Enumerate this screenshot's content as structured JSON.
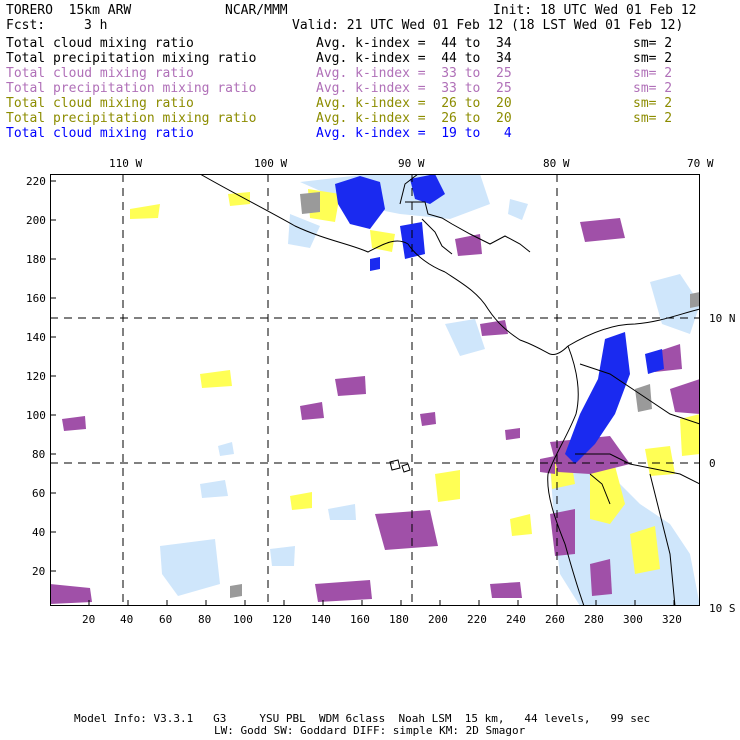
{
  "header": {
    "model": "TORERO  15km ARW",
    "org": "NCAR/MMM",
    "init": "Init: 18 UTC Wed 01 Feb 12",
    "fcst_label": "Fcst:",
    "fcst_value": "3 h",
    "valid": "Valid: 21 UTC Wed 01 Feb 12 (18 LST Wed 01 Feb 12)"
  },
  "colors": {
    "black": "#000000",
    "purple": "#a050a8",
    "olive": "#8c8c00",
    "blue": "#0000ff",
    "yellow": "#ffff55",
    "lightblue": "#cfe6fb",
    "gray": "#9a9a9a",
    "blueshade": "#1a2af0"
  },
  "legend": [
    {
      "field": "Total cloud mixing ratio",
      "kindex": "Avg. k-index =  44 to  34",
      "sm": "sm= 2",
      "color": "#000000"
    },
    {
      "field": "Total precipitation mixing ratio",
      "kindex": "Avg. k-index =  44 to  34",
      "sm": "sm= 2",
      "color": "#000000"
    },
    {
      "field": "Total cloud mixing ratio",
      "kindex": "Avg. k-index =  33 to  25",
      "sm": "sm= 2",
      "color": "#b070b8"
    },
    {
      "field": "Total precipitation mixing ratio",
      "kindex": "Avg. k-index =  33 to  25",
      "sm": "sm= 2",
      "color": "#b070b8"
    },
    {
      "field": "Total cloud mixing ratio",
      "kindex": "Avg. k-index =  26 to  20",
      "sm": "sm= 2",
      "color": "#8c8c00"
    },
    {
      "field": "Total precipitation mixing ratio",
      "kindex": "Avg. k-index =  26 to  20",
      "sm": "sm= 2",
      "color": "#8c8c00"
    },
    {
      "field": "Total cloud mixing ratio",
      "kindex": "Avg. k-index =  19 to   4",
      "sm": "",
      "color": "#0000ff"
    }
  ],
  "map": {
    "lon_labels": [
      "110 W",
      "100 W",
      "90 W",
      "80 W",
      "70 W"
    ],
    "lat_labels": [
      "10 N",
      "0",
      "10 S"
    ],
    "y_ticks": [
      "220",
      "200",
      "180",
      "160",
      "140",
      "120",
      "100",
      "80",
      "60",
      "40",
      "20"
    ],
    "x_ticks": [
      "20",
      "40",
      "60",
      "80",
      "100",
      "120",
      "140",
      "160",
      "180",
      "200",
      "220",
      "240",
      "260",
      "280",
      "300",
      "320"
    ]
  },
  "footer": {
    "line1": "Model Info: V3.3.1   G3     YSU PBL  WDM 6class  Noah LSM  15 km,   44 levels,   99 sec",
    "line2": "LW: Godd SW: Goddard DIFF: simple KM: 2D Smagor"
  }
}
